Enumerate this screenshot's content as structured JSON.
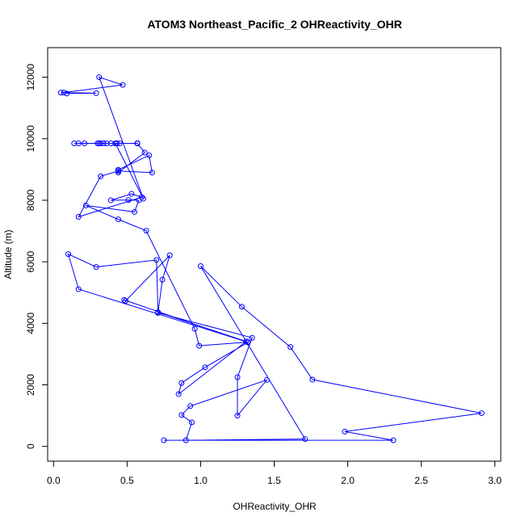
{
  "chart_data": {
    "type": "line",
    "title": "ATOM3 Northeast_Pacific_2 OHReactivity_OHR",
    "xlabel": "OHReactivity_OHR",
    "ylabel": "Altitude (m)",
    "xlim": [
      -0.04,
      3.04
    ],
    "ylim": [
      -480,
      12960
    ],
    "x_ticks": [
      0,
      0.5,
      1,
      1.5,
      2,
      2.5,
      3
    ],
    "x_tick_labels": [
      "0.0",
      "0.5",
      "1.0",
      "1.5",
      "2.0",
      "2.5",
      "3.0"
    ],
    "y_ticks": [
      0,
      2000,
      4000,
      6000,
      8000,
      10000,
      12000
    ],
    "y_tick_labels": [
      "0",
      "2000",
      "4000",
      "6000",
      "8000",
      "10000",
      "12000"
    ],
    "grid": false,
    "legend": "none",
    "series_color": "#0000ff",
    "series": [
      {
        "points": [
          [
            0.75,
            200
          ],
          [
            2.31,
            200
          ],
          [
            1.98,
            480
          ],
          [
            2.91,
            1080
          ],
          [
            1.76,
            2170
          ],
          [
            1.61,
            3230
          ],
          [
            1.28,
            4540
          ],
          [
            1.0,
            5860
          ],
          [
            1.71,
            240
          ],
          [
            0.9,
            200
          ],
          [
            0.94,
            780
          ],
          [
            0.87,
            1020
          ],
          [
            0.93,
            1310
          ],
          [
            1.45,
            2160
          ],
          [
            1.25,
            1000
          ],
          [
            1.25,
            2250
          ],
          [
            1.35,
            3530
          ],
          [
            0.71,
            4340
          ],
          [
            0.74,
            5420
          ],
          [
            0.79,
            6210
          ],
          [
            0.49,
            4730
          ],
          [
            0.48,
            4760
          ],
          [
            1.32,
            3380
          ],
          [
            1.03,
            2570
          ],
          [
            0.87,
            2060
          ],
          [
            0.85,
            1700
          ],
          [
            1.31,
            3410
          ],
          [
            0.71,
            4360
          ],
          [
            0.7,
            6060
          ],
          [
            0.29,
            5830
          ],
          [
            0.1,
            6250
          ],
          [
            0.17,
            5110
          ],
          [
            1.32,
            3390
          ],
          [
            0.99,
            3270
          ],
          [
            0.96,
            3820
          ],
          [
            0.63,
            7010
          ],
          [
            0.44,
            7380
          ],
          [
            0.22,
            7830
          ],
          [
            0.55,
            7620
          ],
          [
            0.58,
            8000
          ],
          [
            0.51,
            8010
          ],
          [
            0.39,
            8000
          ],
          [
            0.53,
            8210
          ],
          [
            0.6,
            8100
          ],
          [
            0.17,
            7460
          ],
          [
            0.32,
            8780
          ],
          [
            0.44,
            8950
          ],
          [
            0.67,
            8900
          ],
          [
            0.65,
            9460
          ],
          [
            0.44,
            8990
          ],
          [
            0.44,
            8900
          ],
          [
            0.62,
            9550
          ],
          [
            0.57,
            9850
          ],
          [
            0.14,
            9850
          ],
          [
            0.39,
            9850
          ],
          [
            0.43,
            9850
          ],
          [
            0.57,
            9850
          ],
          [
            0.17,
            9850
          ],
          [
            0.3,
            9850
          ],
          [
            0.36,
            9850
          ],
          [
            0.42,
            9850
          ],
          [
            0.57,
            9850
          ],
          [
            0.21,
            9850
          ],
          [
            0.34,
            9850
          ],
          [
            0.57,
            9850
          ],
          [
            0.57,
            9850
          ],
          [
            0.45,
            9850
          ],
          [
            0.32,
            9850
          ],
          [
            0.31,
            9850
          ],
          [
            0.43,
            9850
          ],
          [
            0.42,
            9850
          ],
          [
            0.61,
            8050
          ],
          [
            0.31,
            12000
          ],
          [
            0.47,
            11750
          ],
          [
            0.07,
            11500
          ],
          [
            0.05,
            11500
          ],
          [
            0.29,
            11480
          ],
          [
            0.09,
            11470
          ]
        ]
      }
    ]
  }
}
